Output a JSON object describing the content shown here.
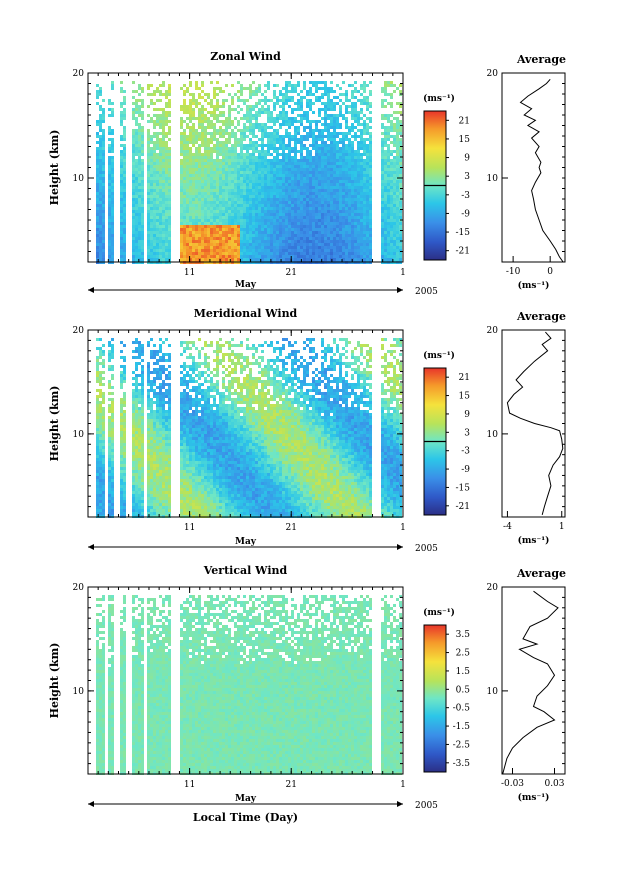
{
  "chart_data": [
    {
      "type": "heatmap",
      "title": "Zonal Wind",
      "ylabel": "Height (km)",
      "ylim": [
        2,
        20
      ],
      "y_ticks": [
        "20",
        "10"
      ],
      "x_ticks": [
        "11",
        "21",
        "1"
      ],
      "x_month": "May",
      "x_year": "2005",
      "colorbar_unit": "(ms⁻¹)",
      "colorbar_labels": [
        "21",
        "15",
        "9",
        "3",
        "-3",
        "-9",
        "-15",
        "-21"
      ],
      "colorbar_range": [
        -24,
        24
      ],
      "zero_line": true,
      "profile": {
        "title": "Average",
        "xlabel": "(ms⁻¹)",
        "x_ticks": [
          "-10",
          "0"
        ],
        "xlim": [
          -13,
          4
        ],
        "y_ticks": [
          "20",
          "10"
        ],
        "points": [
          [
            0,
            19.4
          ],
          [
            -1,
            19.0
          ],
          [
            -3,
            18.5
          ],
          [
            -6,
            17.8
          ],
          [
            -8,
            17.2
          ],
          [
            -5,
            16.6
          ],
          [
            -7,
            16.0
          ],
          [
            -4,
            15.5
          ],
          [
            -6,
            15.0
          ],
          [
            -3,
            14.4
          ],
          [
            -5,
            13.8
          ],
          [
            -3,
            13.0
          ],
          [
            -4,
            12.4
          ],
          [
            -2.5,
            11.5
          ],
          [
            -3,
            11.0
          ],
          [
            -2.5,
            10.5
          ],
          [
            -4,
            9.6
          ],
          [
            -5,
            8.8
          ],
          [
            -4.5,
            8.0
          ],
          [
            -4,
            7.0
          ],
          [
            -3,
            6.0
          ],
          [
            -2,
            5.0
          ],
          [
            0,
            4.0
          ],
          [
            1.5,
            3.2
          ],
          [
            2.5,
            2.5
          ],
          [
            3.5,
            2.0
          ]
        ]
      }
    },
    {
      "type": "heatmap",
      "title": "Meridional Wind",
      "ylabel": "Height (km)",
      "ylim": [
        2,
        20
      ],
      "y_ticks": [
        "20",
        "10"
      ],
      "x_ticks": [
        "11",
        "21",
        "1"
      ],
      "x_month": "May",
      "x_year": "2005",
      "colorbar_unit": "(ms⁻¹)",
      "colorbar_labels": [
        "21",
        "15",
        "9",
        "3",
        "-3",
        "-9",
        "-15",
        "-21"
      ],
      "colorbar_range": [
        -24,
        24
      ],
      "zero_line": true,
      "profile": {
        "title": "Average",
        "xlabel": "(ms⁻¹)",
        "x_ticks": [
          "-4",
          "1"
        ],
        "xlim": [
          -4.5,
          1.3
        ],
        "y_ticks": [
          "20",
          "10"
        ],
        "points": [
          [
            -0.5,
            19.8
          ],
          [
            0,
            19.2
          ],
          [
            -0.8,
            18.6
          ],
          [
            -0.3,
            18.0
          ],
          [
            -1.5,
            17.0
          ],
          [
            -2.5,
            16.0
          ],
          [
            -3.2,
            15.2
          ],
          [
            -2.6,
            14.5
          ],
          [
            -3.4,
            13.8
          ],
          [
            -4.0,
            13.0
          ],
          [
            -3.8,
            12.0
          ],
          [
            -2.8,
            11.5
          ],
          [
            -1.5,
            11.0
          ],
          [
            0,
            10.6
          ],
          [
            0.8,
            10.3
          ],
          [
            1.0,
            9.5
          ],
          [
            1.1,
            8.6
          ],
          [
            0.8,
            7.8
          ],
          [
            0.2,
            7.0
          ],
          [
            -0.2,
            6.0
          ],
          [
            0,
            5.0
          ],
          [
            -0.3,
            4.0
          ],
          [
            -0.6,
            3.0
          ],
          [
            -0.8,
            2.2
          ]
        ]
      }
    },
    {
      "type": "heatmap",
      "title": "Vertical Wind",
      "ylabel": "Height (km)",
      "ylim": [
        2,
        20
      ],
      "y_ticks": [
        "20",
        "10"
      ],
      "x_ticks": [
        "11",
        "21",
        "1"
      ],
      "x_month": "May",
      "x_year": "2005",
      "xlabel": "Local Time (Day)",
      "colorbar_unit": "(ms⁻¹)",
      "colorbar_labels": [
        "3.5",
        "2.5",
        "1.5",
        "0.5",
        "-0.5",
        "-1.5",
        "-2.5",
        "-3.5"
      ],
      "colorbar_range": [
        -4,
        4
      ],
      "zero_line": false,
      "profile": {
        "title": "Average",
        "xlabel": "(ms⁻¹)",
        "x_ticks": [
          "-0.03",
          "0.03"
        ],
        "xlim": [
          -0.045,
          0.045
        ],
        "y_ticks": [
          "20",
          "10"
        ],
        "points": [
          [
            0.0,
            19.6
          ],
          [
            0.02,
            18.6
          ],
          [
            0.035,
            18.0
          ],
          [
            0.02,
            17.0
          ],
          [
            -0.005,
            16.2
          ],
          [
            -0.015,
            15.0
          ],
          [
            0.005,
            14.5
          ],
          [
            -0.02,
            14.0
          ],
          [
            0.0,
            13.2
          ],
          [
            0.02,
            12.6
          ],
          [
            0.03,
            11.5
          ],
          [
            0.02,
            10.5
          ],
          [
            0.005,
            9.5
          ],
          [
            0.0,
            8.5
          ],
          [
            0.015,
            8.0
          ],
          [
            0.03,
            7.2
          ],
          [
            0.005,
            6.5
          ],
          [
            -0.015,
            5.5
          ],
          [
            -0.03,
            4.5
          ],
          [
            -0.038,
            3.5
          ],
          [
            -0.042,
            2.5
          ],
          [
            -0.044,
            2.0
          ]
        ]
      }
    }
  ]
}
